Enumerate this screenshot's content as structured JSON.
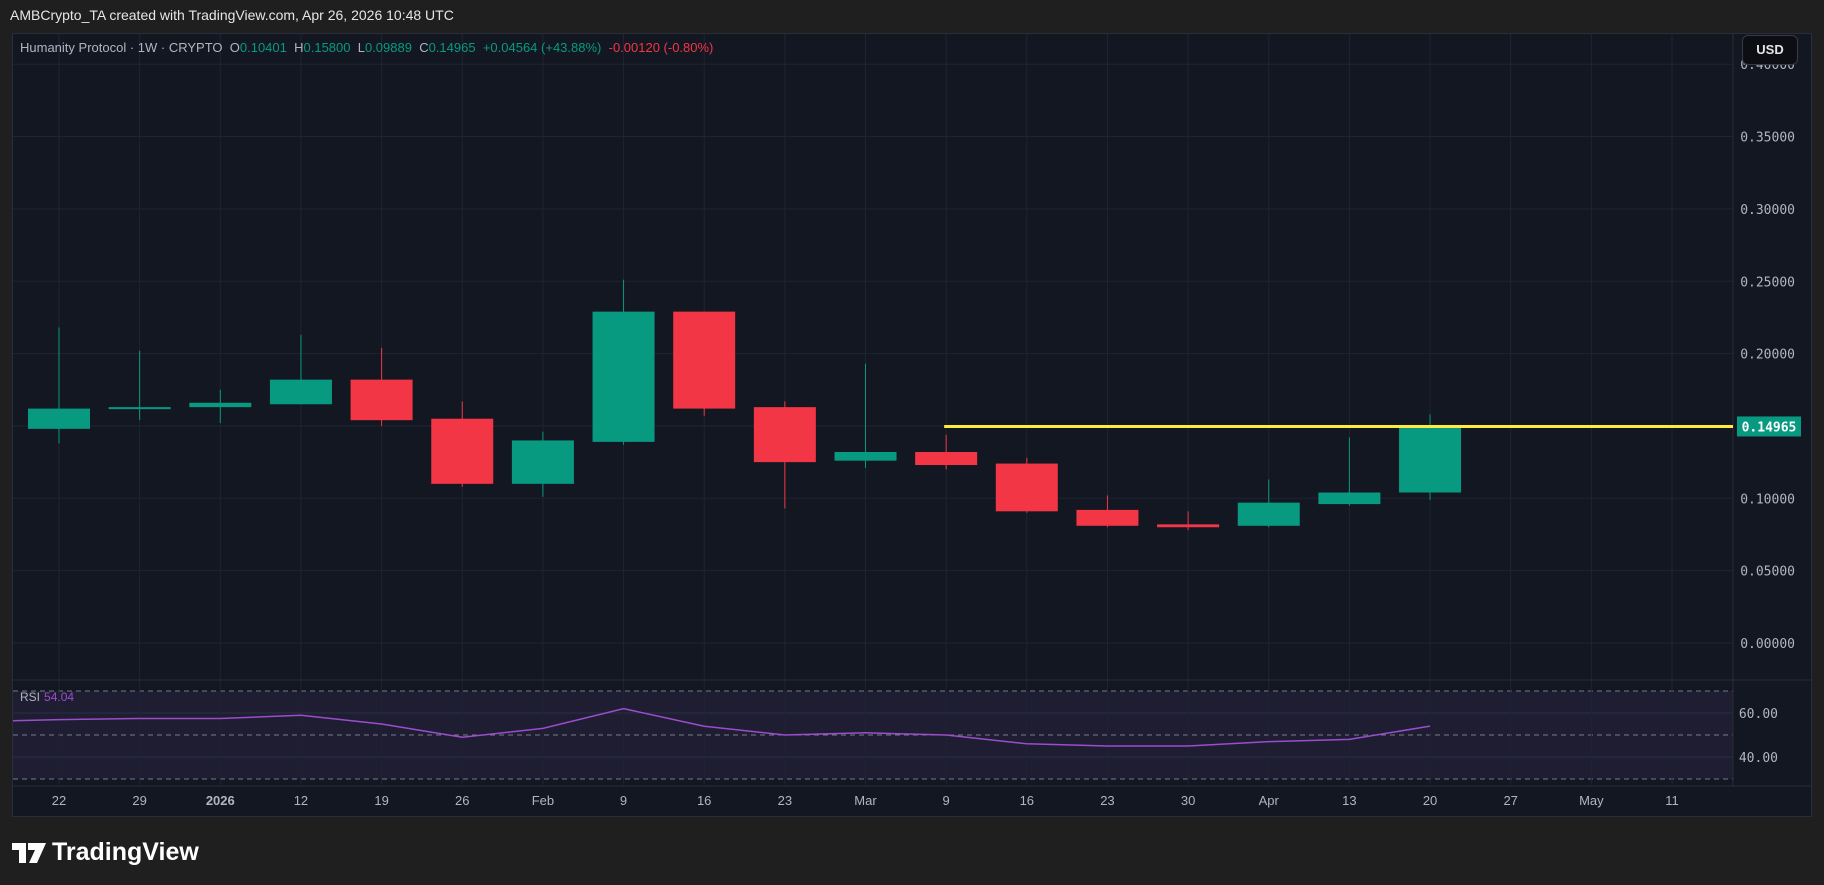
{
  "header": {
    "text": "AMBCrypto_TA created with TradingView.com, Apr 26, 2026 10:48 UTC"
  },
  "legend": {
    "symbol": "Humanity Protocol · 1W · CRYPTO",
    "o_label": "O",
    "o": "0.10401",
    "h_label": "H",
    "h": "0.15800",
    "l_label": "L",
    "l": "0.09889",
    "c_label": "C",
    "c": "0.14965",
    "change": "+0.04564 (+43.88%)",
    "change2": "-0.00120 (-0.80%)"
  },
  "currency_button": "USD",
  "rsi": {
    "label": "RSI",
    "value": "54.04"
  },
  "logo": "TradingView",
  "colors": {
    "up": "#089981",
    "down": "#f23645",
    "level_line": "#ffeb3b",
    "rsi": "#9c4dcc",
    "background": "#131722"
  },
  "chart_data": {
    "type": "candlestick",
    "title": "Humanity Protocol · 1W · CRYPTO",
    "x_tick_labels": [
      "22",
      "29",
      "2026",
      "12",
      "19",
      "26",
      "Feb",
      "9",
      "16",
      "23",
      "Mar",
      "9",
      "16",
      "23",
      "30",
      "Apr",
      "13",
      "20",
      "27",
      "May",
      "11"
    ],
    "y_tick_labels": [
      "0.40000",
      "0.35000",
      "0.30000",
      "0.25000",
      "0.20000",
      "0.10000",
      "0.05000",
      "0.00000"
    ],
    "ylim": [
      0,
      0.4
    ],
    "grid": true,
    "candles": [
      {
        "x": "Dec 22",
        "o": 0.148,
        "h": 0.218,
        "l": 0.138,
        "c": 0.162
      },
      {
        "x": "Dec 29",
        "o": 0.162,
        "h": 0.202,
        "l": 0.154,
        "c": 0.163
      },
      {
        "x": "Jan 5",
        "o": 0.163,
        "h": 0.175,
        "l": 0.152,
        "c": 0.166
      },
      {
        "x": "Jan 12",
        "o": 0.165,
        "h": 0.213,
        "l": 0.165,
        "c": 0.182
      },
      {
        "x": "Jan 19",
        "o": 0.182,
        "h": 0.204,
        "l": 0.15,
        "c": 0.154
      },
      {
        "x": "Jan 26",
        "o": 0.155,
        "h": 0.167,
        "l": 0.108,
        "c": 0.11
      },
      {
        "x": "Feb 2",
        "o": 0.11,
        "h": 0.146,
        "l": 0.101,
        "c": 0.14
      },
      {
        "x": "Feb 9",
        "o": 0.139,
        "h": 0.251,
        "l": 0.137,
        "c": 0.229
      },
      {
        "x": "Feb 16",
        "o": 0.229,
        "h": 0.229,
        "l": 0.157,
        "c": 0.162
      },
      {
        "x": "Feb 23",
        "o": 0.163,
        "h": 0.167,
        "l": 0.093,
        "c": 0.125
      },
      {
        "x": "Mar 2",
        "o": 0.126,
        "h": 0.193,
        "l": 0.121,
        "c": 0.132
      },
      {
        "x": "Mar 9",
        "o": 0.132,
        "h": 0.144,
        "l": 0.12,
        "c": 0.123
      },
      {
        "x": "Mar 16",
        "o": 0.124,
        "h": 0.128,
        "l": 0.09,
        "c": 0.091
      },
      {
        "x": "Mar 23",
        "o": 0.092,
        "h": 0.102,
        "l": 0.08,
        "c": 0.081
      },
      {
        "x": "Mar 30",
        "o": 0.082,
        "h": 0.091,
        "l": 0.078,
        "c": 0.08
      },
      {
        "x": "Apr 6",
        "o": 0.081,
        "h": 0.113,
        "l": 0.08,
        "c": 0.097
      },
      {
        "x": "Apr 13",
        "o": 0.096,
        "h": 0.142,
        "l": 0.095,
        "c": 0.104
      },
      {
        "x": "Apr 20",
        "o": 0.10401,
        "h": 0.158,
        "l": 0.09889,
        "c": 0.14965
      }
    ],
    "horizontal_level": {
      "value": 0.14965,
      "label": "0.14965",
      "from": "Mar 9"
    },
    "rsi": {
      "values": [
        57,
        57.5,
        57.5,
        59,
        55,
        49,
        53,
        62,
        54,
        50,
        51,
        50,
        46,
        45,
        45,
        47,
        48,
        54.04
      ],
      "tick_labels": [
        "60.00",
        "40.00"
      ],
      "bands": [
        70,
        50,
        30
      ]
    }
  }
}
